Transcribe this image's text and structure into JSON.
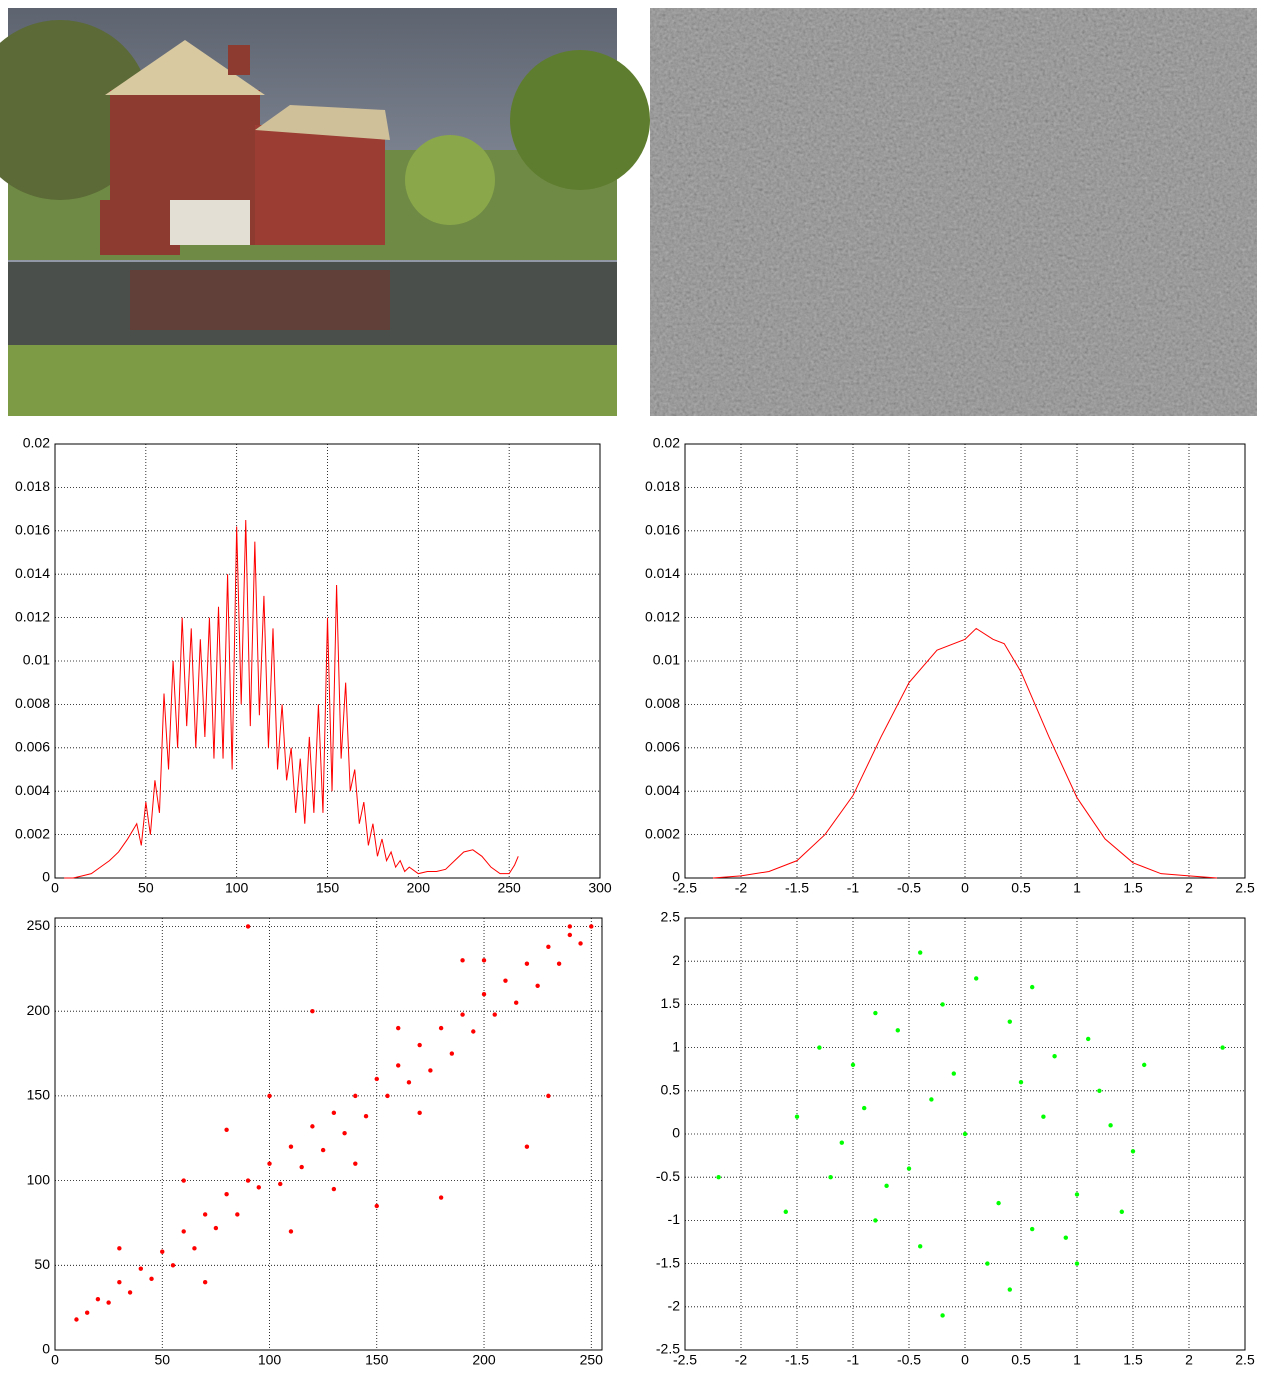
{
  "chart_data": [
    {
      "type": "line",
      "color": "#ff0000",
      "grid": true,
      "xlim": [
        0,
        300
      ],
      "ylim": [
        0,
        0.02
      ],
      "xticks": [
        0,
        50,
        100,
        150,
        200,
        250,
        300
      ],
      "yticks": [
        0,
        0.002,
        0.004,
        0.006,
        0.008,
        0.01,
        0.012,
        0.014,
        0.016,
        0.018,
        0.02
      ],
      "x": [
        5,
        10,
        15,
        20,
        25,
        30,
        35,
        40,
        45,
        47.5,
        50,
        52.5,
        55,
        57.5,
        60,
        62.5,
        65,
        67.5,
        70,
        72.5,
        75,
        77.5,
        80,
        82.5,
        85,
        87.5,
        90,
        92.5,
        95,
        97.5,
        100,
        102.5,
        105,
        107.5,
        110,
        112.5,
        115,
        117.5,
        120,
        122.5,
        125,
        127.5,
        130,
        132.5,
        135,
        137.5,
        140,
        142.5,
        145,
        147.5,
        150,
        152.5,
        155,
        157.5,
        160,
        162.5,
        165,
        167.5,
        170,
        172.5,
        175,
        177.5,
        180,
        182.5,
        185,
        187.5,
        190,
        192.5,
        195,
        200,
        205,
        210,
        215,
        220,
        225,
        230,
        235,
        240,
        245,
        250,
        253,
        255
      ],
      "values": [
        0,
        0,
        0.0001,
        0.0002,
        0.0005,
        0.0008,
        0.0012,
        0.0018,
        0.0025,
        0.0015,
        0.0035,
        0.002,
        0.0045,
        0.003,
        0.0085,
        0.005,
        0.01,
        0.006,
        0.012,
        0.007,
        0.0115,
        0.006,
        0.011,
        0.0065,
        0.012,
        0.0055,
        0.0125,
        0.0055,
        0.014,
        0.005,
        0.0162,
        0.008,
        0.0165,
        0.007,
        0.0155,
        0.0075,
        0.013,
        0.006,
        0.0115,
        0.005,
        0.008,
        0.0045,
        0.006,
        0.003,
        0.0055,
        0.0025,
        0.0065,
        0.003,
        0.008,
        0.003,
        0.012,
        0.004,
        0.0135,
        0.0055,
        0.009,
        0.004,
        0.005,
        0.0025,
        0.0035,
        0.0015,
        0.0025,
        0.001,
        0.0018,
        0.0008,
        0.0012,
        0.0005,
        0.0008,
        0.0003,
        0.0005,
        0.0002,
        0.0003,
        0.0003,
        0.0004,
        0.0008,
        0.0012,
        0.0013,
        0.001,
        0.0005,
        0.0002,
        0.0002,
        0.0006,
        0.001
      ]
    },
    {
      "type": "line",
      "color": "#ff0000",
      "grid": true,
      "xlim": [
        -2.5,
        2.5
      ],
      "ylim": [
        0,
        0.02
      ],
      "xticks": [
        -2.5,
        -2,
        -1.5,
        -1,
        -0.5,
        0,
        0.5,
        1,
        1.5,
        2,
        2.5
      ],
      "yticks": [
        0,
        0.002,
        0.004,
        0.006,
        0.008,
        0.01,
        0.012,
        0.014,
        0.016,
        0.018,
        0.02
      ],
      "x": [
        -2.25,
        -2,
        -1.75,
        -1.5,
        -1.25,
        -1,
        -0.75,
        -0.5,
        -0.25,
        0,
        0.1,
        0.25,
        0.35,
        0.5,
        0.75,
        1,
        1.25,
        1.5,
        1.75,
        2,
        2.25
      ],
      "values": [
        0,
        0.0001,
        0.0003,
        0.0008,
        0.002,
        0.0038,
        0.0065,
        0.009,
        0.0105,
        0.011,
        0.0115,
        0.011,
        0.0108,
        0.0095,
        0.0065,
        0.0037,
        0.0018,
        0.0007,
        0.0002,
        0.0001,
        0
      ]
    },
    {
      "type": "scatter",
      "color": "#ff0000",
      "grid": true,
      "xlim": [
        0,
        255
      ],
      "ylim": [
        0,
        255
      ],
      "xticks": [
        0,
        50,
        100,
        150,
        200,
        250
      ],
      "yticks": [
        0,
        50,
        100,
        150,
        200,
        250
      ],
      "x": [
        10,
        15,
        20,
        25,
        30,
        35,
        40,
        45,
        50,
        55,
        60,
        65,
        70,
        75,
        80,
        85,
        90,
        95,
        100,
        105,
        110,
        115,
        120,
        125,
        130,
        135,
        140,
        145,
        150,
        155,
        160,
        165,
        170,
        175,
        180,
        185,
        190,
        195,
        200,
        205,
        210,
        215,
        220,
        225,
        230,
        235,
        240,
        245,
        250,
        60,
        80,
        100,
        120,
        140,
        160,
        180,
        200,
        220,
        240,
        30,
        70,
        110,
        150,
        190,
        230,
        90,
        130,
        170
      ],
      "values": [
        18,
        22,
        30,
        28,
        40,
        34,
        48,
        42,
        58,
        50,
        70,
        60,
        80,
        72,
        92,
        80,
        100,
        96,
        110,
        98,
        120,
        108,
        132,
        118,
        140,
        128,
        150,
        138,
        160,
        150,
        168,
        158,
        180,
        165,
        190,
        175,
        198,
        188,
        210,
        198,
        218,
        205,
        228,
        215,
        238,
        228,
        245,
        240,
        250,
        100,
        130,
        150,
        200,
        110,
        190,
        90,
        230,
        120,
        250,
        60,
        40,
        70,
        85,
        230,
        150,
        250,
        95,
        140
      ]
    },
    {
      "type": "scatter",
      "color": "#00ff00",
      "grid": true,
      "xlim": [
        -2.5,
        2.5
      ],
      "ylim": [
        -2.5,
        2.5
      ],
      "xticks": [
        -2.5,
        -2,
        -1.5,
        -1,
        -0.5,
        0,
        0.5,
        1,
        1.5,
        2,
        2.5
      ],
      "yticks": [
        -2.5,
        -2,
        -1.5,
        -1,
        -0.5,
        0,
        0.5,
        1,
        1.5,
        2,
        2.5
      ],
      "x": [
        -1.5,
        -1.2,
        -1,
        -0.8,
        -0.6,
        -0.4,
        -0.2,
        0,
        0.2,
        0.4,
        0.6,
        0.8,
        1,
        1.2,
        1.5,
        -1.3,
        -0.9,
        -0.5,
        -0.1,
        0.3,
        0.7,
        1.1,
        1.4,
        -1.1,
        -0.7,
        -0.3,
        0.1,
        0.5,
        0.9,
        1.3,
        -1.6,
        -0.4,
        0.4,
        1.6,
        -2.2,
        2.3,
        -0.2,
        0.6,
        -0.8,
        1.0
      ],
      "values": [
        0.2,
        -0.5,
        0.8,
        -1.0,
        1.2,
        -1.3,
        1.5,
        0,
        -1.5,
        1.3,
        -1.1,
        0.9,
        -0.7,
        0.5,
        -0.2,
        1.0,
        0.3,
        -0.4,
        0.7,
        -0.8,
        0.2,
        1.1,
        -0.9,
        -0.1,
        -0.6,
        0.4,
        1.8,
        0.6,
        -1.2,
        0.1,
        -0.9,
        2.1,
        -1.8,
        0.8,
        -0.5,
        1.0,
        -2.1,
        1.7,
        1.4,
        -1.5
      ]
    }
  ]
}
